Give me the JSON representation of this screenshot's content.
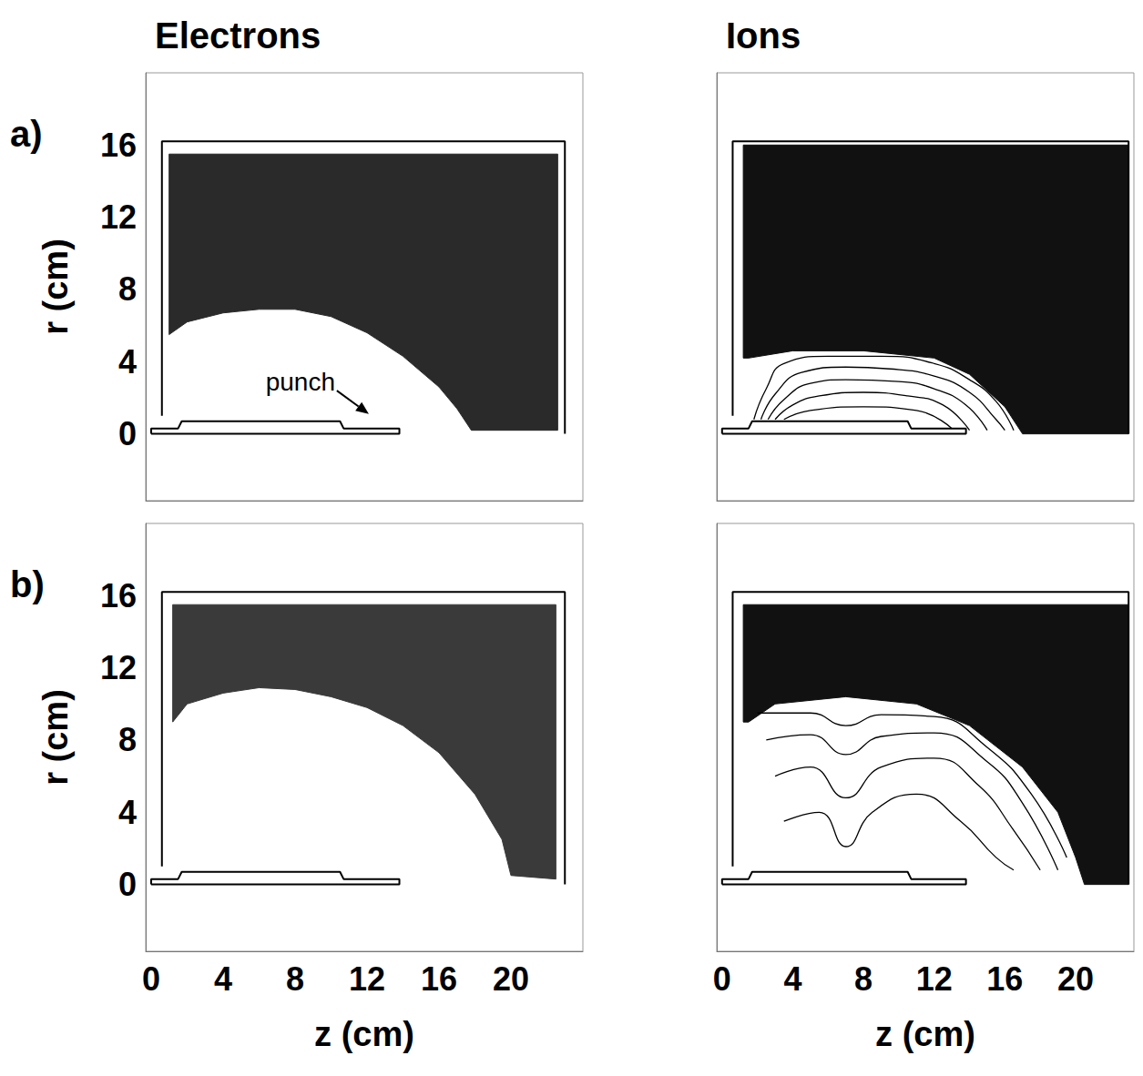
{
  "chart_data": [
    {
      "type": "particle_map",
      "title": "Electrons",
      "panel": "a)",
      "xlim": [
        -0.3,
        24
      ],
      "ylim": [
        -3.7,
        20
      ],
      "xticks": [
        0,
        4,
        8,
        12,
        16,
        20
      ],
      "yticks": [
        0,
        4,
        8,
        12,
        16
      ],
      "ylabel": "r (cm)",
      "tick_labels": "y",
      "region": {
        "color": "#2a2a2a",
        "points": [
          [
            1,
            5.5
          ],
          [
            2,
            6.2
          ],
          [
            4,
            6.7
          ],
          [
            6,
            6.9
          ],
          [
            8,
            6.9
          ],
          [
            10,
            6.5
          ],
          [
            12,
            5.6
          ],
          [
            14,
            4.3
          ],
          [
            16,
            2.6
          ],
          [
            17,
            1.4
          ],
          [
            17.8,
            0.2
          ],
          [
            22.6,
            0.2
          ],
          [
            22.6,
            15.5
          ],
          [
            1,
            15.5
          ]
        ]
      },
      "chamber": [
        [
          [
            0.6,
            1
          ],
          [
            0.6,
            16.2
          ],
          [
            23.0,
            16.2
          ],
          [
            23.0,
            0
          ]
        ]
      ],
      "punch": [
        [
          0,
          0
        ],
        [
          13.8,
          0
        ],
        [
          13.8,
          0.3
        ],
        [
          10.7,
          0.3
        ],
        [
          10.5,
          0.7
        ],
        [
          1.7,
          0.7
        ],
        [
          1.5,
          0.3
        ],
        [
          0,
          0.3
        ],
        [
          0,
          0
        ]
      ],
      "annotations": [
        {
          "text": "punch",
          "x": 8.3,
          "y": 2.9,
          "arrow_to": [
            12.1,
            1.1
          ]
        }
      ]
    },
    {
      "type": "particle_map",
      "title": "Ions",
      "xlim": [
        -0.3,
        23.3
      ],
      "ylim": [
        -3.7,
        20
      ],
      "xticks": [
        0,
        4,
        8,
        12,
        16,
        20
      ],
      "yticks": [
        0,
        4,
        8,
        12,
        16
      ],
      "tick_labels": false,
      "region": {
        "color": "#111111",
        "points": [
          [
            1.2,
            4.2
          ],
          [
            1.5,
            4.2
          ],
          [
            4,
            4.6
          ],
          [
            8,
            4.6
          ],
          [
            12,
            4.2
          ],
          [
            14,
            3.3
          ],
          [
            16,
            1.5
          ],
          [
            17,
            0
          ],
          [
            23,
            0
          ],
          [
            23,
            16
          ],
          [
            1.2,
            16
          ]
        ]
      },
      "trajectories": {
        "color": "#000000",
        "lines": [
          [
            [
              1.8,
              0.8
            ],
            [
              2.5,
              2.5
            ],
            [
              3.5,
              3.9
            ],
            [
              6,
              4.3
            ],
            [
              9,
              4.3
            ],
            [
              12,
              3.9
            ],
            [
              14,
              3
            ],
            [
              15.5,
              1.8
            ],
            [
              16.5,
              0.2
            ]
          ],
          [
            [
              2.2,
              0.8
            ],
            [
              3,
              2.2
            ],
            [
              4.5,
              3.4
            ],
            [
              7,
              3.7
            ],
            [
              9.5,
              3.6
            ],
            [
              12,
              3.2
            ],
            [
              14,
              2.3
            ],
            [
              15.5,
              0.8
            ],
            [
              16,
              0.2
            ]
          ],
          [
            [
              2.6,
              0.8
            ],
            [
              3.5,
              1.9
            ],
            [
              5,
              2.8
            ],
            [
              7,
              3
            ],
            [
              10,
              2.9
            ],
            [
              12,
              2.5
            ],
            [
              13.8,
              1.6
            ],
            [
              15,
              0.2
            ]
          ],
          [
            [
              3,
              0.8
            ],
            [
              4,
              1.6
            ],
            [
              5.5,
              2.1
            ],
            [
              8,
              2.3
            ],
            [
              10.5,
              2.1
            ],
            [
              12.5,
              1.6
            ],
            [
              14,
              0.2
            ]
          ],
          [
            [
              3.5,
              0.8
            ],
            [
              5,
              1.3
            ],
            [
              8,
              1.5
            ],
            [
              11,
              1.3
            ],
            [
              13,
              0.3
            ]
          ]
        ]
      },
      "chamber": [
        [
          [
            0.6,
            1
          ],
          [
            0.6,
            16.2
          ],
          [
            23.0,
            16.2
          ],
          [
            23.0,
            0
          ]
        ]
      ],
      "punch": [
        [
          0,
          0
        ],
        [
          13.8,
          0
        ],
        [
          13.8,
          0.3
        ],
        [
          10.7,
          0.3
        ],
        [
          10.5,
          0.7
        ],
        [
          1.7,
          0.7
        ],
        [
          1.5,
          0.3
        ],
        [
          0,
          0.3
        ],
        [
          0,
          0
        ]
      ]
    },
    {
      "type": "particle_map",
      "panel": "b)",
      "xlim": [
        -0.3,
        24
      ],
      "ylim": [
        -3.7,
        20
      ],
      "xticks": [
        0,
        4,
        8,
        12,
        16,
        20
      ],
      "yticks": [
        0,
        4,
        8,
        12,
        16
      ],
      "xlabel": "z (cm)",
      "ylabel": "r (cm)",
      "tick_labels": true,
      "region": {
        "color": "#3a3a3a",
        "points": [
          [
            1.2,
            9
          ],
          [
            2,
            10
          ],
          [
            4,
            10.6
          ],
          [
            6,
            10.9
          ],
          [
            8,
            10.8
          ],
          [
            10,
            10.4
          ],
          [
            12,
            9.8
          ],
          [
            14,
            8.8
          ],
          [
            16,
            7.3
          ],
          [
            18,
            5
          ],
          [
            19.5,
            2.5
          ],
          [
            20,
            0.5
          ],
          [
            22.5,
            0.3
          ],
          [
            22.5,
            15.5
          ],
          [
            1.2,
            15.5
          ]
        ]
      },
      "chamber": [
        [
          [
            0.6,
            1
          ],
          [
            0.6,
            16.2
          ],
          [
            23.0,
            16.2
          ],
          [
            23.0,
            0
          ]
        ]
      ],
      "punch": [
        [
          0,
          0
        ],
        [
          13.8,
          0
        ],
        [
          13.8,
          0.3
        ],
        [
          10.7,
          0.3
        ],
        [
          10.5,
          0.7
        ],
        [
          1.7,
          0.7
        ],
        [
          1.5,
          0.3
        ],
        [
          0,
          0.3
        ],
        [
          0,
          0
        ]
      ]
    },
    {
      "type": "particle_map",
      "xlim": [
        -0.3,
        23.3
      ],
      "ylim": [
        -3.7,
        20
      ],
      "xticks": [
        0,
        4,
        8,
        12,
        16,
        20
      ],
      "yticks": [
        0,
        4,
        8,
        12,
        16
      ],
      "xlabel": "z (cm)",
      "tick_labels": "x",
      "region": {
        "color": "#111111",
        "points": [
          [
            1.2,
            9
          ],
          [
            1.5,
            9
          ],
          [
            3,
            10
          ],
          [
            7,
            10.4
          ],
          [
            11,
            10
          ],
          [
            14,
            8.8
          ],
          [
            17,
            6.5
          ],
          [
            19,
            4
          ],
          [
            20,
            1.5
          ],
          [
            20.5,
            0
          ],
          [
            23,
            0
          ],
          [
            23,
            15.5
          ],
          [
            1.2,
            15.5
          ]
        ]
      },
      "trajectories": {
        "color": "#000000",
        "lines": [
          [
            [
              2,
              9.5
            ],
            [
              5,
              9.5
            ],
            [
              7,
              8.8
            ],
            [
              9,
              9.4
            ],
            [
              12,
              9.3
            ],
            [
              15,
              7.6
            ],
            [
              17.5,
              5
            ],
            [
              19.5,
              1.5
            ]
          ],
          [
            [
              2.5,
              8
            ],
            [
              5,
              8.3
            ],
            [
              7,
              7.2
            ],
            [
              9,
              8.2
            ],
            [
              12,
              8.4
            ],
            [
              15,
              6.8
            ],
            [
              17,
              4.5
            ],
            [
              19,
              0.8
            ]
          ],
          [
            [
              3,
              6
            ],
            [
              5,
              6.5
            ],
            [
              7,
              4.8
            ],
            [
              9,
              6.5
            ],
            [
              12,
              7
            ],
            [
              14.5,
              5.5
            ],
            [
              16.5,
              3
            ],
            [
              18,
              0.8
            ]
          ],
          [
            [
              3.5,
              3.5
            ],
            [
              5.5,
              4
            ],
            [
              7,
              2.1
            ],
            [
              8.5,
              4
            ],
            [
              11,
              5
            ],
            [
              13.5,
              3.5
            ],
            [
              15.5,
              1.5
            ],
            [
              16.5,
              0.8
            ]
          ]
        ]
      },
      "chamber": [
        [
          [
            0.6,
            1
          ],
          [
            0.6,
            16.2
          ],
          [
            23.0,
            16.2
          ],
          [
            23.0,
            0
          ]
        ]
      ],
      "punch": [
        [
          0,
          0
        ],
        [
          13.8,
          0
        ],
        [
          13.8,
          0.3
        ],
        [
          10.7,
          0.3
        ],
        [
          10.5,
          0.7
        ],
        [
          1.7,
          0.7
        ],
        [
          1.5,
          0.3
        ],
        [
          0,
          0.3
        ],
        [
          0,
          0
        ]
      ]
    }
  ]
}
